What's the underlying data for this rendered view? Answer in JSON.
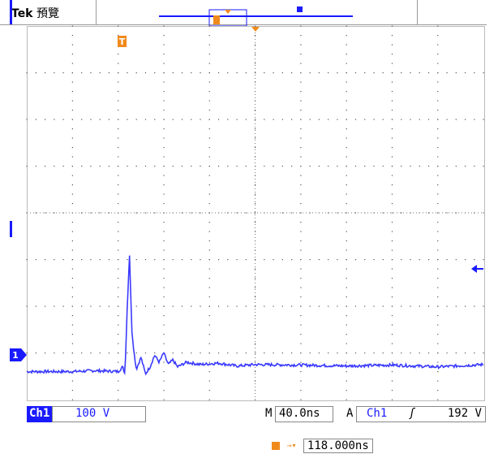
{
  "header": {
    "brand": "Tek",
    "mode": "預覽"
  },
  "markers": {
    "trigger_marker": "T",
    "ground_marker": "1"
  },
  "status": {
    "channel": "Ch1",
    "scale": "100 V",
    "timebase_prefix": "M",
    "timebase": "40.0ns",
    "trigger_prefix": "A",
    "trigger_source": "Ch1",
    "trigger_slope": "ʃ",
    "trigger_level": "192 V"
  },
  "trigger_position": {
    "label": "118.000ns"
  },
  "colors": {
    "trace": "#3a3aff",
    "marker": "#f08a1c",
    "channel_bg": "#1a1aff"
  },
  "chart_data": {
    "type": "line",
    "xlabel": "",
    "ylabel": "",
    "x_divisions": 10,
    "y_divisions": 8,
    "series": [
      {
        "x": [
          0,
          0.5,
          1,
          1.5,
          2,
          2.1,
          2.15,
          2.2,
          2.25,
          2.3,
          2.35,
          2.4,
          2.5,
          2.6,
          2.7,
          2.8,
          2.9,
          3.0,
          3.1,
          3.2,
          3.3,
          3.5,
          3.8,
          4.2,
          4.6,
          5,
          6,
          7,
          8,
          9,
          10
        ],
        "y": [
          0.1,
          0.1,
          0.1,
          0.12,
          0.1,
          0.2,
          0.05,
          1.5,
          2.6,
          1.0,
          0.5,
          0.15,
          0.4,
          0.05,
          0.2,
          0.45,
          0.3,
          0.5,
          0.25,
          0.35,
          0.2,
          0.3,
          0.25,
          0.28,
          0.22,
          0.25,
          0.24,
          0.22,
          0.24,
          0.2,
          0.25
        ]
      }
    ]
  }
}
